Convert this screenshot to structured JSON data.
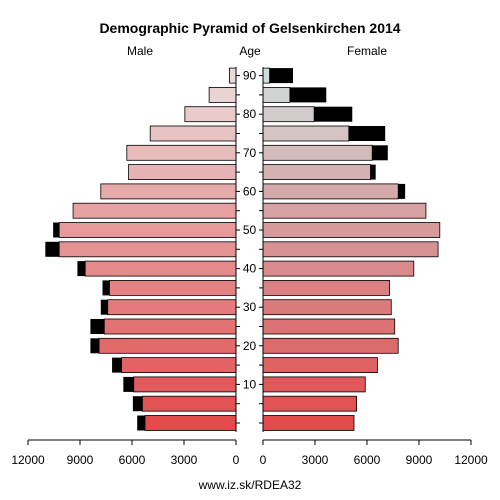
{
  "chart_data": {
    "type": "bar",
    "title": "Demographic Pyramid of Gelsenkirchen 2014",
    "left_label": "Male",
    "center_label": "Age",
    "right_label": "Female",
    "footer": "www.iz.sk/RDEA32",
    "x_max": 12000,
    "x_ticks": [
      0,
      3000,
      6000,
      9000,
      12000
    ],
    "x_tick_labels": [
      "0",
      "3000",
      "6000",
      "9000",
      "12000"
    ],
    "age_ticks": [
      10,
      20,
      30,
      40,
      50,
      60,
      70,
      80,
      90
    ],
    "age_groups": [
      "0-4",
      "5-9",
      "10-14",
      "15-19",
      "20-24",
      "25-29",
      "30-34",
      "35-39",
      "40-44",
      "45-49",
      "50-54",
      "55-59",
      "60-64",
      "65-69",
      "70-74",
      "75-79",
      "80-84",
      "85-89",
      "90+"
    ],
    "male_base": [
      5250,
      5400,
      5900,
      6600,
      7900,
      7600,
      7400,
      7300,
      8700,
      10200,
      10200,
      9400,
      7800,
      6200,
      6300,
      4950,
      2950,
      1550,
      380
    ],
    "male_excess": [
      450,
      550,
      600,
      550,
      500,
      800,
      400,
      400,
      450,
      800,
      350,
      0,
      0,
      0,
      0,
      0,
      0,
      0,
      0
    ],
    "female_base": [
      5250,
      5400,
      5900,
      6600,
      7800,
      7600,
      7400,
      7300,
      8700,
      10100,
      10200,
      9400,
      7800,
      6200,
      6300,
      4950,
      2950,
      1550,
      380
    ],
    "female_excess": [
      0,
      0,
      0,
      0,
      0,
      0,
      0,
      0,
      0,
      0,
      0,
      0,
      400,
      300,
      900,
      2100,
      2200,
      2100,
      1350
    ],
    "male_colors": [
      "#e24a4c",
      "#e25254",
      "#e25a5b",
      "#e36263",
      "#e36a6b",
      "#e47273",
      "#e47a7b",
      "#e48283",
      "#e58a8b",
      "#e59293",
      "#e69a9b",
      "#e6a2a3",
      "#e7aaaa",
      "#e7b2b3",
      "#e8bbbb",
      "#e8c3c3",
      "#e9cbcb",
      "#e9d3d3",
      "#eadbdb"
    ],
    "female_colors": [
      "#e24a4c",
      "#e15254",
      "#e05a5b",
      "#df6263",
      "#dd6a6b",
      "#dc7273",
      "#db7a7b",
      "#da8283",
      "#d98a8b",
      "#d89293",
      "#d79a9b",
      "#d6a2a3",
      "#d5aaaa",
      "#d4b2b3",
      "#d4bbbb",
      "#d3c3c3",
      "#d2cbcb",
      "#d1d3d3",
      "#d0dbdb"
    ],
    "excess_color": "#000000"
  }
}
